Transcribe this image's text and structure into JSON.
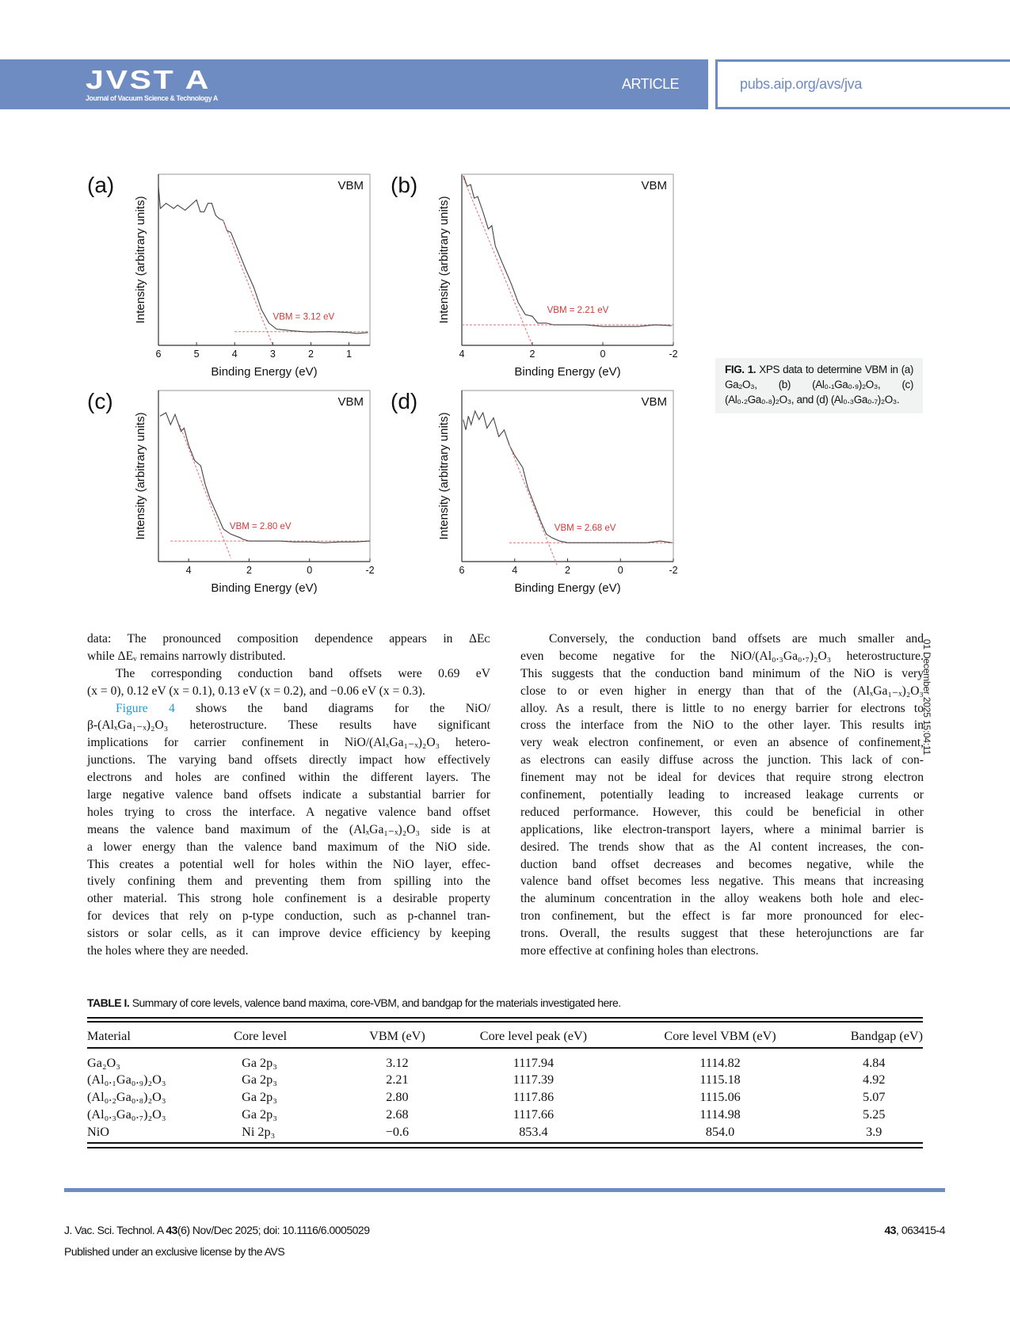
{
  "header": {
    "logo": "JVST A",
    "logo_subtitle": "Journal of Vacuum Science & Technology A",
    "section": "ARTICLE",
    "url": "pubs.aip.org/avs/jva",
    "accent_color": "#6e8bc2"
  },
  "figure": {
    "caption_label": "FIG. 1.",
    "caption_text": "XPS data to determine VBM in (a) Ga₂O₃, (b) (Al₀.₁Ga₀.₉)₂O₃, (c) (Al₀.₂Ga₀.₈)₂O₃, and (d) (Al₀.₃Ga₀.₇)₂O₃."
  },
  "chart_data": [
    {
      "type": "line",
      "panel": "(a)",
      "corner_label": "VBM",
      "xlabel": "Binding Energy (eV)",
      "ylabel": "Intensity (arbitrary units)",
      "xlim": [
        6,
        0.45
      ],
      "ylim": [
        0,
        1
      ],
      "x_reversed": true,
      "xticks": [
        6,
        5,
        4,
        3,
        2,
        1
      ],
      "annotation": "VBM = 3.12 eV",
      "vbm": 3.12,
      "series": {
        "x": [
          6,
          5.95,
          5.8,
          5.6,
          5.5,
          5.3,
          5.0,
          4.9,
          4.8,
          4.7,
          4.6,
          4.5,
          4.4,
          4.3,
          4.2,
          4.1,
          3.9,
          3.7,
          3.5,
          3.3,
          3.1,
          2.9,
          2.7,
          2.5,
          2.2,
          2.0,
          1.5,
          1.0,
          0.8,
          0.5
        ],
        "y": [
          0.93,
          0.8,
          0.83,
          0.8,
          0.82,
          0.79,
          0.85,
          0.78,
          0.78,
          0.83,
          0.83,
          0.76,
          0.74,
          0.73,
          0.67,
          0.66,
          0.55,
          0.44,
          0.34,
          0.21,
          0.13,
          0.095,
          0.09,
          0.085,
          0.08,
          0.078,
          0.08,
          0.075,
          0.07,
          0.075
        ]
      },
      "fit_slope": {
        "x": [
          4.3,
          3.0
        ],
        "y": [
          0.73,
          0.0
        ]
      },
      "fit_baseline": {
        "x": [
          4.0,
          0.5
        ],
        "y": [
          0.08,
          0.08
        ]
      }
    },
    {
      "type": "line",
      "panel": "(b)",
      "corner_label": "VBM",
      "xlabel": "Binding Energy (eV)",
      "ylabel": "Intensity (arbitrary units)",
      "xlim": [
        4,
        -2
      ],
      "ylim": [
        0,
        1
      ],
      "x_reversed": true,
      "xticks": [
        4,
        2,
        0,
        -2
      ],
      "annotation": "VBM = 2.21 eV",
      "vbm": 2.21,
      "series": {
        "x": [
          3.95,
          3.85,
          3.75,
          3.65,
          3.55,
          3.4,
          3.25,
          3.15,
          3.05,
          2.85,
          2.6,
          2.4,
          2.2,
          2.0,
          1.85,
          1.6,
          1.4,
          1.0,
          0.5,
          0,
          -0.5,
          -1,
          -1.5,
          -1.95
        ],
        "y": [
          0.99,
          0.93,
          0.94,
          0.86,
          0.87,
          0.78,
          0.68,
          0.7,
          0.58,
          0.48,
          0.36,
          0.25,
          0.18,
          0.17,
          0.13,
          0.13,
          0.12,
          0.12,
          0.12,
          0.11,
          0.11,
          0.11,
          0.12,
          0.115
        ]
      },
      "fit_slope": {
        "x": [
          4.0,
          2.0
        ],
        "y": [
          1.0,
          0.0
        ]
      },
      "fit_baseline": {
        "x": [
          4.0,
          -2.0
        ],
        "y": [
          0.12,
          0.12
        ]
      }
    },
    {
      "type": "line",
      "panel": "(c)",
      "corner_label": "VBM",
      "xlabel": "Binding Energy (eV)",
      "ylabel": "Intensity (arbitrary units)",
      "xlim": [
        5,
        -2
      ],
      "ylim": [
        0,
        1
      ],
      "x_reversed": true,
      "xticks": [
        4,
        2,
        0,
        -2
      ],
      "annotation": "VBM = 2.80 eV",
      "vbm": 2.8,
      "series": {
        "x": [
          4.95,
          4.75,
          4.6,
          4.45,
          4.25,
          4.15,
          4.0,
          3.8,
          3.6,
          3.45,
          3.3,
          3.1,
          3.0,
          2.85,
          2.6,
          2.3,
          2.2,
          2.0,
          1.7,
          1.3,
          1.0,
          0.5,
          0,
          -0.5,
          -1,
          -1.5,
          -2
        ],
        "y": [
          0.85,
          0.87,
          0.8,
          0.86,
          0.76,
          0.78,
          0.68,
          0.59,
          0.56,
          0.45,
          0.37,
          0.29,
          0.25,
          0.19,
          0.16,
          0.14,
          0.13,
          0.12,
          0.12,
          0.12,
          0.12,
          0.115,
          0.115,
          0.11,
          0.115,
          0.115,
          0.12
        ]
      },
      "fit_slope": {
        "x": [
          4.3,
          2.6
        ],
        "y": [
          0.8,
          0.02
        ]
      },
      "fit_baseline": {
        "x": [
          4.6,
          -2.0
        ],
        "y": [
          0.12,
          0.12
        ]
      }
    },
    {
      "type": "line",
      "panel": "(d)",
      "corner_label": "VBM",
      "xlabel": "Binding Energy (eV)",
      "ylabel": "Intensity (arbitrary units)",
      "xlim": [
        6,
        -2
      ],
      "ylim": [
        0,
        1
      ],
      "x_reversed": true,
      "xticks": [
        6,
        4,
        2,
        0,
        -2
      ],
      "annotation": "VBM = 2.68 eV",
      "vbm": 2.68,
      "series": {
        "x": [
          5.95,
          5.85,
          5.75,
          5.65,
          5.5,
          5.35,
          5.2,
          5.05,
          4.8,
          4.6,
          4.4,
          4.2,
          4.0,
          3.7,
          3.5,
          3.3,
          3.0,
          2.8,
          2.6,
          2.3,
          2.0,
          1.5,
          1,
          0.5,
          0,
          -0.5,
          -1,
          -1.5,
          -1.95
        ],
        "y": [
          0.83,
          0.77,
          0.85,
          0.8,
          0.88,
          0.83,
          0.87,
          0.78,
          0.84,
          0.73,
          0.77,
          0.68,
          0.62,
          0.55,
          0.43,
          0.35,
          0.23,
          0.16,
          0.14,
          0.12,
          0.11,
          0.11,
          0.11,
          0.11,
          0.11,
          0.11,
          0.11,
          0.12,
          0.11
        ]
      },
      "fit_slope": {
        "x": [
          4.2,
          2.4
        ],
        "y": [
          0.68,
          -0.02
        ]
      },
      "fit_baseline": {
        "x": [
          4.2,
          -2.0
        ],
        "y": [
          0.11,
          0.11
        ]
      }
    }
  ],
  "body": {
    "left": [
      {
        "t": "data: The pronounced composition dependence appears in ΔEᴄ"
      },
      {
        "t": "while ΔEᵥ remains narrowly distributed.",
        "last": true
      },
      {
        "t": "The corresponding conduction band offsets were 0.69 eV",
        "indent": true
      },
      {
        "t": "(x = 0), 0.12 eV (x = 0.1), 0.13 eV (x = 0.2), and −0.06 eV (x = 0.3).",
        "last": true
      },
      {
        "link": "Figure 4",
        "t": " shows the band diagrams for the NiO/",
        "indent": true
      },
      {
        "t": "β-(AlₓGa₁₋ₓ)₂O₃ heterostructure. These results have significant"
      },
      {
        "t": "implications for carrier confinement in NiO/(AlₓGa₁₋ₓ)₂O₃ hetero-"
      },
      {
        "t": "junctions. The varying band offsets directly impact how effectively"
      },
      {
        "t": "electrons and holes are confined within the different layers. The"
      },
      {
        "t": "large negative valence band offsets indicate a substantial barrier for"
      },
      {
        "t": "holes trying to cross the interface. A negative valence band offset"
      },
      {
        "t": "means the valence band maximum of the (AlₓGa₁₋ₓ)₂O₃ side is at"
      },
      {
        "t": "a lower energy than the valence band maximum of the NiO side."
      },
      {
        "t": "This creates a potential well for holes within the NiO layer, effec-"
      },
      {
        "t": "tively confining them and preventing them from spilling into the"
      },
      {
        "t": "other material. This strong hole confinement is a desirable property"
      },
      {
        "t": "for devices that rely on p-type conduction, such as p-channel tran-"
      },
      {
        "t": "sistors or solar cells, as it can improve device efficiency by keeping"
      },
      {
        "t": "the holes where they are needed.",
        "last": true
      }
    ],
    "right": [
      {
        "t": "Conversely, the conduction band offsets are much smaller and",
        "indent": true
      },
      {
        "t": "even become negative for the NiO/(Al₀.₃Ga₀.₇)₂O₃ heterostructure."
      },
      {
        "t": "This suggests that the conduction band minimum of the NiO is very"
      },
      {
        "t": "close to or even higher in energy than that of the (AlₓGa₁₋ₓ)₂O₃"
      },
      {
        "t": "alloy. As a result, there is little to no energy barrier for electrons to"
      },
      {
        "t": "cross the interface from the NiO to the other layer. This results in"
      },
      {
        "t": "very weak electron confinement, or even an absence of confinement,"
      },
      {
        "t": "as electrons can easily diffuse across the junction. This lack of con-"
      },
      {
        "t": "finement may not be ideal for devices that require strong electron"
      },
      {
        "t": "confinement, potentially leading to increased leakage currents or"
      },
      {
        "t": "reduced performance. However, this could be beneficial in other"
      },
      {
        "t": "applications, like electron-transport layers, where a minimal barrier is"
      },
      {
        "t": "desired. The trends show that as the Al content increases, the con-"
      },
      {
        "t": "duction band offset decreases and becomes negative, while the"
      },
      {
        "t": "valence band offset becomes less negative. This means that increasing"
      },
      {
        "t": "the aluminum concentration in the alloy weakens both hole and elec-"
      },
      {
        "t": "tron confinement, but the effect is far more pronounced for elec-"
      },
      {
        "t": "trons. Overall, the results suggest that these heterojunctions are far"
      },
      {
        "t": "more effective at confining holes than electrons.",
        "last": true
      }
    ]
  },
  "side_stamp": "01 December 2025 15:04:11",
  "table": {
    "label": "TABLE I.",
    "caption": "Summary of core levels, valence band maxima, core-VBM, and bandgap for the materials investigated here.",
    "headers": [
      "Material",
      "Core level",
      "VBM (eV)",
      "Core level peak (eV)",
      "Core level VBM (eV)",
      "Bandgap (eV)"
    ],
    "rows": [
      [
        "Ga₂O₃",
        "Ga 2p₃",
        "3.12",
        "1117.94",
        "1114.82",
        "4.84"
      ],
      [
        "(Al₀.₁Ga₀.₉)₂O₃",
        "Ga 2p₃",
        "2.21",
        "1117.39",
        "1115.18",
        "4.92"
      ],
      [
        "(Al₀.₂Ga₀.₈)₂O₃",
        "Ga 2p₃",
        "2.80",
        "1117.86",
        "1115.06",
        "5.07"
      ],
      [
        "(Al₀.₃Ga₀.₇)₂O₃",
        "Ga 2p₃",
        "2.68",
        "1117.66",
        "1114.98",
        "5.25"
      ],
      [
        "NiO",
        "Ni 2p₃",
        "−0.6",
        "853.4",
        "854.0",
        "3.9"
      ]
    ]
  },
  "footer": {
    "citation_prefix": "J. Vac. Sci. Technol. A ",
    "volume": "43",
    "citation_suffix": "(6) Nov/Dec 2025; doi: 10.1116/6.0005029",
    "license": "Published under an exclusive license by the AVS",
    "page_volume": "43",
    "page_number": ", 063415-4"
  }
}
